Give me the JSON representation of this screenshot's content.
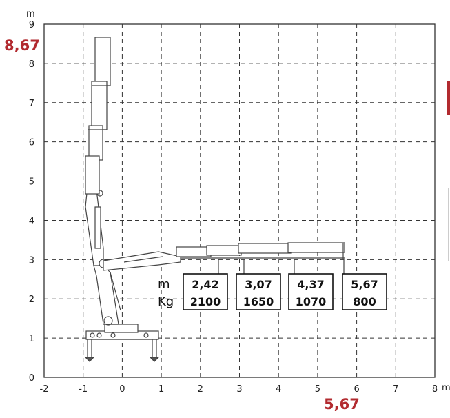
{
  "axis": {
    "x_ticks": [
      "-2",
      "-1",
      "0",
      "1",
      "2",
      "3",
      "4",
      "5",
      "6",
      "7",
      "8"
    ],
    "y_ticks": [
      "0",
      "1",
      "2",
      "3",
      "4",
      "5",
      "6",
      "7",
      "8",
      "9"
    ],
    "x_unit": "m",
    "y_unit": "m",
    "xlim": [
      -2,
      8
    ],
    "ylim": [
      0,
      9
    ],
    "grid": true
  },
  "max_height_label": "8,67",
  "max_reach_label": "5,67",
  "row_labels": {
    "distance": "m",
    "load": "Kg"
  },
  "load_table": [
    {
      "reach": "2,42",
      "load": "2100"
    },
    {
      "reach": "3,07",
      "load": "1650"
    },
    {
      "reach": "4,37",
      "load": "1070"
    },
    {
      "reach": "5,67",
      "load": "800"
    }
  ],
  "colors": {
    "accent": "#b22a2f",
    "grid": "#333333",
    "crane": "#444444"
  }
}
